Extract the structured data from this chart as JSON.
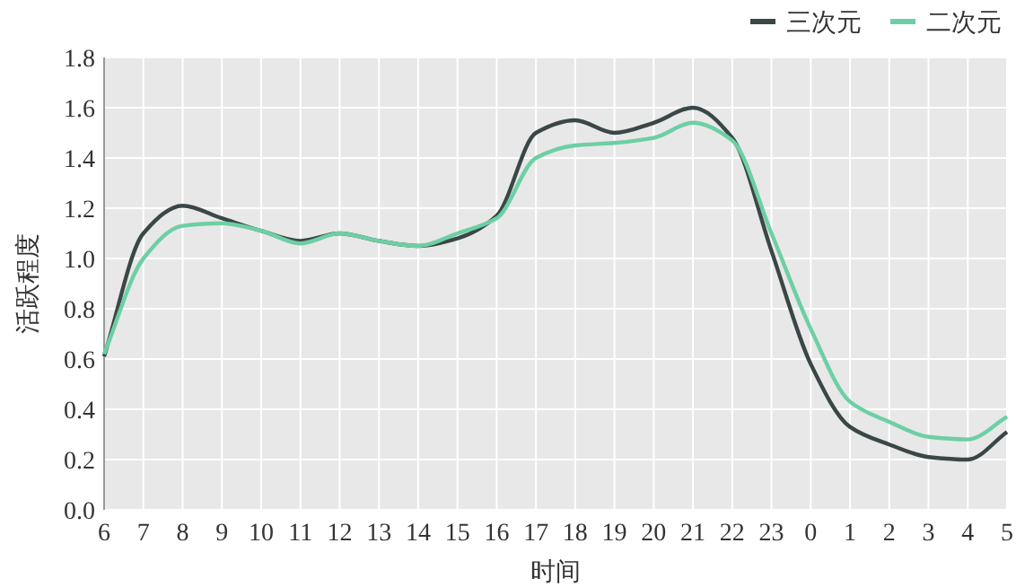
{
  "chart_data": {
    "type": "line",
    "xlabel": "时间",
    "ylabel": "活跃程度",
    "categories": [
      "6",
      "7",
      "8",
      "9",
      "10",
      "11",
      "12",
      "13",
      "14",
      "15",
      "16",
      "17",
      "18",
      "19",
      "20",
      "21",
      "22",
      "23",
      "0",
      "1",
      "2",
      "3",
      "4",
      "5"
    ],
    "series": [
      {
        "name": "三次元",
        "color": "#3b4747",
        "values": [
          0.61,
          1.1,
          1.21,
          1.16,
          1.11,
          1.07,
          1.1,
          1.07,
          1.05,
          1.08,
          1.17,
          1.5,
          1.55,
          1.5,
          1.54,
          1.6,
          1.48,
          1.03,
          0.58,
          0.33,
          0.26,
          0.21,
          0.2,
          0.31
        ]
      },
      {
        "name": "二次元",
        "color": "#6dcfa5",
        "values": [
          0.62,
          1.0,
          1.13,
          1.14,
          1.11,
          1.06,
          1.1,
          1.07,
          1.05,
          1.1,
          1.16,
          1.4,
          1.45,
          1.46,
          1.48,
          1.54,
          1.47,
          1.1,
          0.72,
          0.43,
          0.35,
          0.29,
          0.28,
          0.37
        ]
      }
    ],
    "ylim": [
      0,
      1.8
    ],
    "yticks": [
      {
        "value": 0,
        "label": "0.0"
      },
      0.2,
      0.4,
      0.6,
      0.8,
      {
        "value": 1,
        "label": "1.0"
      },
      1.2,
      1.4,
      1.6,
      1.8
    ],
    "grid": true,
    "legend": "top right",
    "marker": "none",
    "line_style": "solid"
  }
}
